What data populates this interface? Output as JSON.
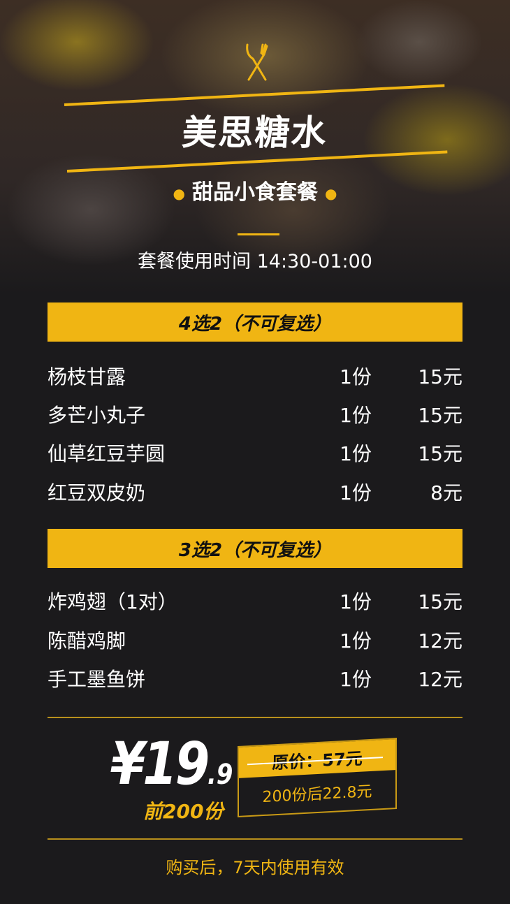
{
  "header": {
    "icon": "fork-knife-icon",
    "title": "美思糖水",
    "subtitle": "甜品小食套餐",
    "time_label": "套餐使用时间  14:30-01:00"
  },
  "colors": {
    "accent": "#f0b513",
    "background": "#1b1a1c"
  },
  "sections": [
    {
      "title": "4选2（不可复选）",
      "items": [
        {
          "name": "杨枝甘露",
          "qty": "1份",
          "price": "15元"
        },
        {
          "name": "多芒小丸子",
          "qty": "1份",
          "price": "15元"
        },
        {
          "name": "仙草红豆芋圆",
          "qty": "1份",
          "price": "15元"
        },
        {
          "name": "红豆双皮奶",
          "qty": "1份",
          "price": "8元"
        }
      ]
    },
    {
      "title": "3选2（不可复选）",
      "items": [
        {
          "name": "炸鸡翅（1对）",
          "qty": "1份",
          "price": "15元"
        },
        {
          "name": "陈醋鸡脚",
          "qty": "1份",
          "price": "12元"
        },
        {
          "name": "手工墨鱼饼",
          "qty": "1份",
          "price": "12元"
        }
      ]
    }
  ],
  "price": {
    "currency": "¥",
    "main": "19",
    "decimal": ".9",
    "note": "前200份",
    "original": "原价：57元",
    "after": "200份后22.8元"
  },
  "footer": "购买后，7天内使用有效"
}
